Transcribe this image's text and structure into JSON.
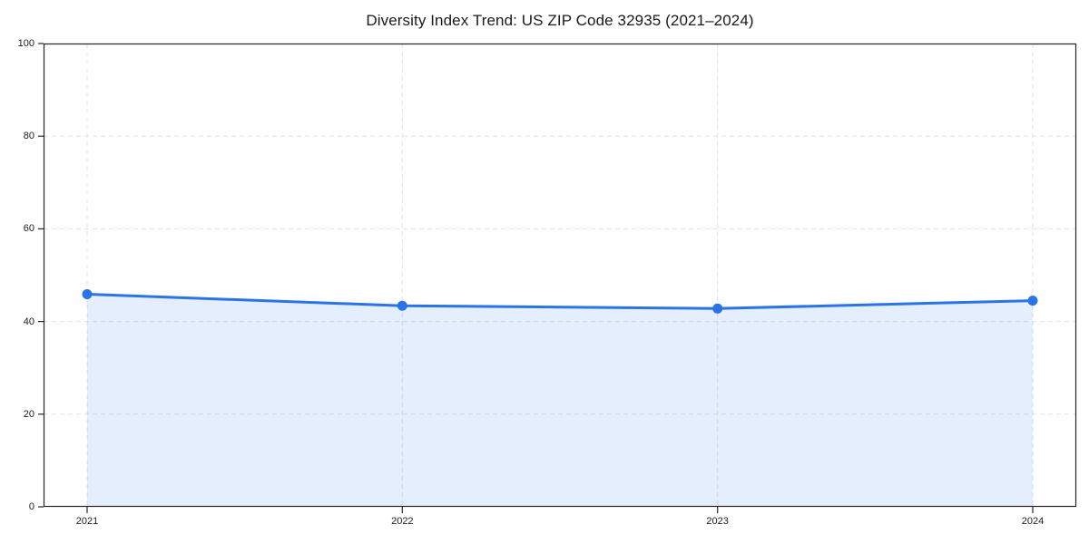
{
  "page": {
    "title": "Diversity Index Trend: US ZIP Code 32935 (2021–2024)"
  },
  "chart_data": {
    "type": "line",
    "area_fill": true,
    "title": "Diversity Index Trend: US ZIP Code 32935 (2021–2024)",
    "categories": [
      "2021",
      "2022",
      "2023",
      "2024"
    ],
    "values": [
      45.9,
      43.4,
      42.8,
      44.5
    ],
    "series_name": "Diversity Index",
    "xlabel": "",
    "ylabel": "",
    "ylim": [
      0,
      100
    ],
    "yticks": [
      0,
      20,
      40,
      60,
      80,
      100
    ],
    "grid": true,
    "grid_style": "dashed",
    "legend": "none",
    "marker": "circle",
    "colors": {
      "line": "#2a74e8",
      "fill_opacity": "0.12",
      "grid": "#e2e2e2",
      "spine": "#262626",
      "text": "#1a1a1a",
      "background": "#ffffff"
    }
  }
}
